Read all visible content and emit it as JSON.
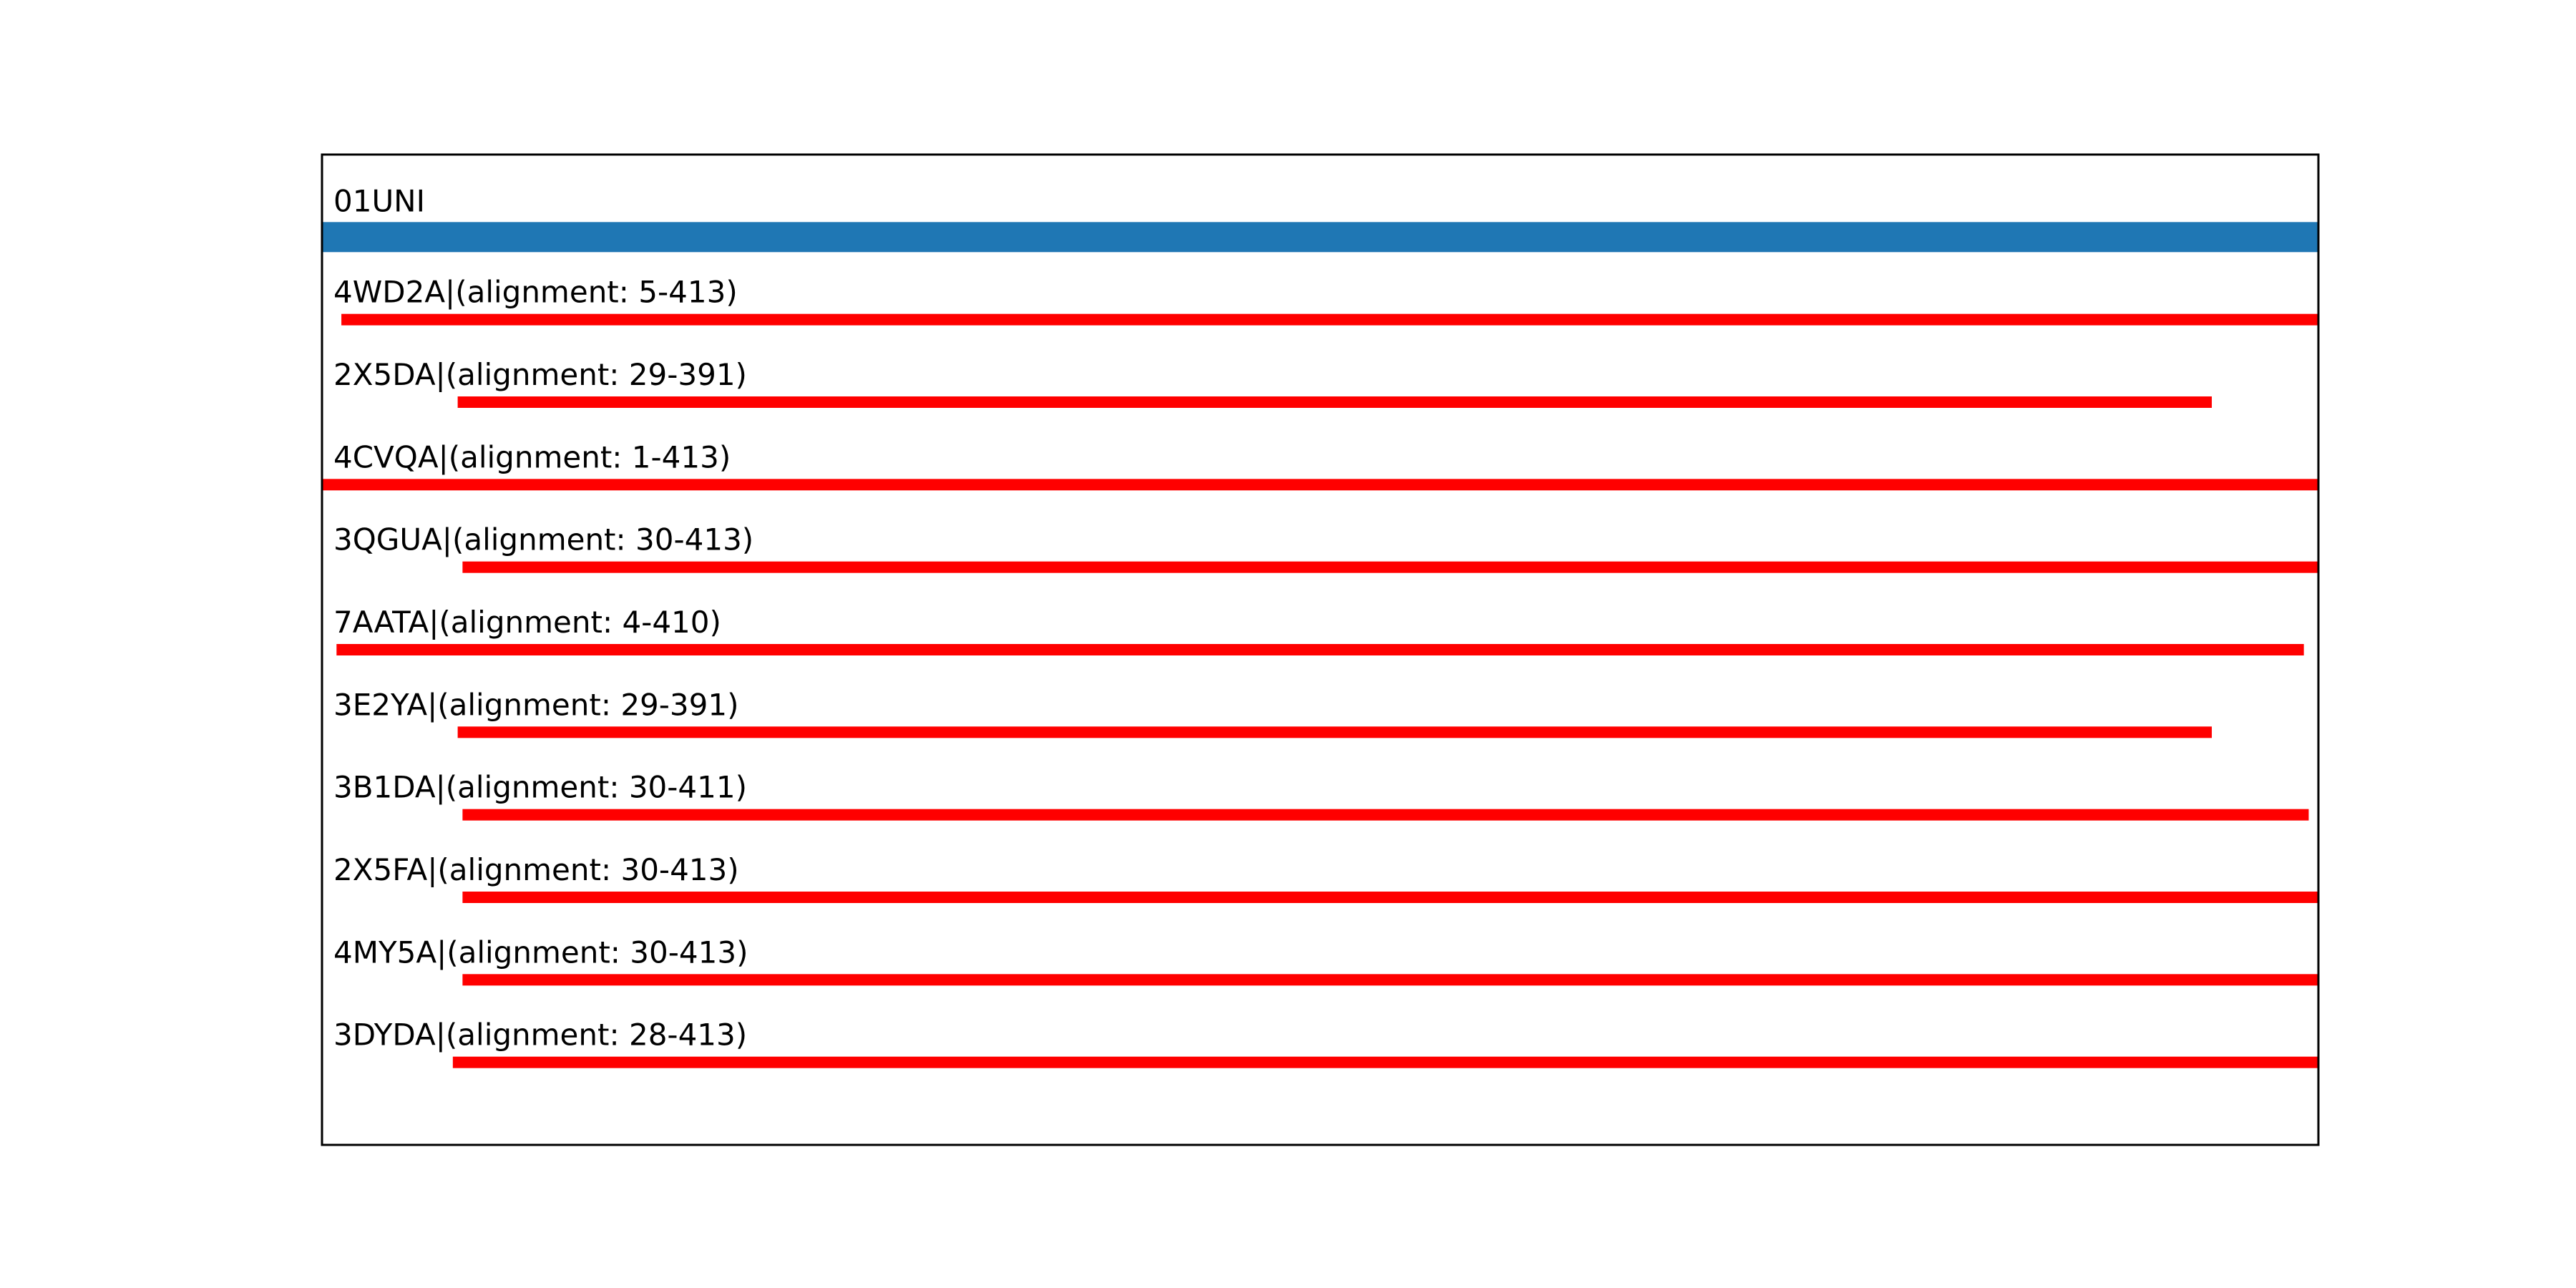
{
  "chart_data": {
    "type": "bar",
    "orientation": "horizontal-segments",
    "xlim": [
      1,
      413
    ],
    "grid": false,
    "axis_ticks_visible": false,
    "colors": {
      "reference": "#1f77b4",
      "alignment": "#ff0000",
      "frame": "#000000"
    },
    "reference": {
      "label": "01UNI",
      "start": 1,
      "end": 413
    },
    "series": [
      {
        "label": "4WD2A|(alignment: 5-413)",
        "start": 5,
        "end": 413
      },
      {
        "label": "2X5DA|(alignment: 29-391)",
        "start": 29,
        "end": 391
      },
      {
        "label": "4CVQA|(alignment: 1-413)",
        "start": 1,
        "end": 413
      },
      {
        "label": "3QGUA|(alignment: 30-413)",
        "start": 30,
        "end": 413
      },
      {
        "label": "7AATA|(alignment: 4-410)",
        "start": 4,
        "end": 410
      },
      {
        "label": "3E2YA|(alignment: 29-391)",
        "start": 29,
        "end": 391
      },
      {
        "label": "3B1DA|(alignment: 30-411)",
        "start": 30,
        "end": 411
      },
      {
        "label": "2X5FA|(alignment: 30-413)",
        "start": 30,
        "end": 413
      },
      {
        "label": "4MY5A|(alignment: 30-413)",
        "start": 30,
        "end": 413
      },
      {
        "label": "3DYDA|(alignment: 28-413)",
        "start": 28,
        "end": 413
      }
    ]
  }
}
